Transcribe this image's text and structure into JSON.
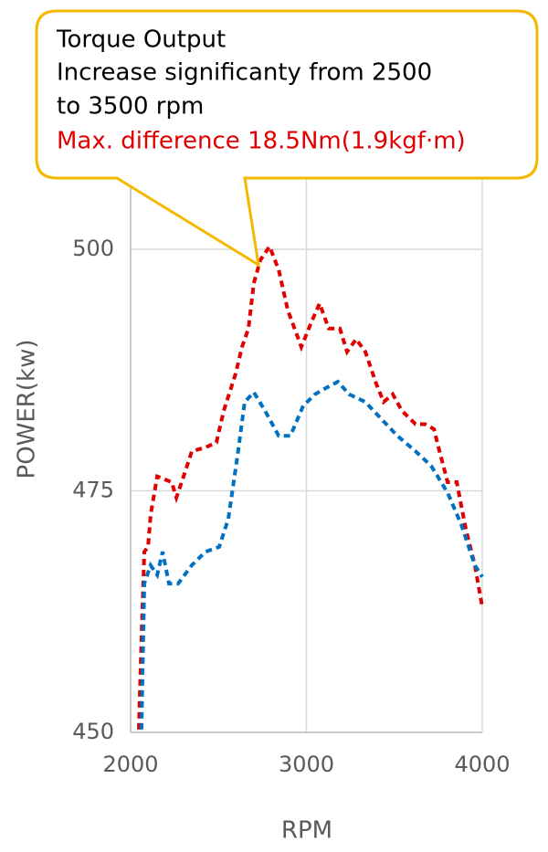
{
  "chart_data": {
    "type": "line",
    "xlabel": "RPM",
    "ylabel": "POWER(kw)",
    "annotation": {
      "title": "Torque Output",
      "lines": [
        "Increase significanty from 2500",
        "to 3500 rpm"
      ],
      "highlight": "Max. difference 18.5Nm(1.9kgf·m)",
      "highlight_color": "#e00000"
    },
    "xlim": [
      2000,
      4000
    ],
    "xticks": [
      2000,
      3000,
      4000
    ],
    "ylim": [
      450,
      507
    ],
    "yticks": [
      450,
      475,
      500
    ],
    "grid": true,
    "series": [
      {
        "color": "#e00000",
        "x": [
          2047,
          2062,
          2078,
          2099,
          2114,
          2151,
          2192,
          2234,
          2260,
          2296,
          2348,
          2426,
          2488,
          2530,
          2597,
          2634,
          2670,
          2701,
          2738,
          2790,
          2842,
          2894,
          2971,
          3034,
          3075,
          3127,
          3190,
          3231,
          3283,
          3335,
          3397,
          3439,
          3491,
          3543,
          3621,
          3673,
          3725,
          3751,
          3803,
          3855,
          3907,
          3958,
          4000
        ],
        "values": [
          450.3,
          459.7,
          468.7,
          469.2,
          472.5,
          476.5,
          476.2,
          475.9,
          474.3,
          476.2,
          479.1,
          479.5,
          480,
          483.3,
          487.1,
          489.9,
          491.8,
          496.5,
          498.9,
          500.3,
          497.9,
          493.7,
          489.9,
          492.7,
          494.4,
          491.8,
          491.8,
          489.4,
          490.7,
          489.4,
          486.1,
          484.2,
          485,
          483.3,
          481.9,
          481.9,
          481.4,
          479.5,
          475.9,
          475.9,
          471,
          467.3,
          463
        ]
      },
      {
        "color": "#0070c0",
        "x": [
          2062,
          2078,
          2114,
          2151,
          2182,
          2218,
          2270,
          2348,
          2426,
          2504,
          2556,
          2608,
          2649,
          2701,
          2764,
          2842,
          2909,
          2982,
          3049,
          3117,
          3179,
          3242,
          3335,
          3428,
          3517,
          3621,
          3709,
          3803,
          3881,
          3958,
          4000
        ],
        "values": [
          450.3,
          465.4,
          467.3,
          466.3,
          468.7,
          465.4,
          465.4,
          467.3,
          468.7,
          469.2,
          472.1,
          478.6,
          484.2,
          485.2,
          483.3,
          480.7,
          480.7,
          483.8,
          485,
          485.7,
          486.3,
          485,
          484.2,
          482.4,
          480.7,
          479.1,
          477.6,
          474.8,
          471.5,
          467.3,
          466.1
        ]
      }
    ]
  }
}
